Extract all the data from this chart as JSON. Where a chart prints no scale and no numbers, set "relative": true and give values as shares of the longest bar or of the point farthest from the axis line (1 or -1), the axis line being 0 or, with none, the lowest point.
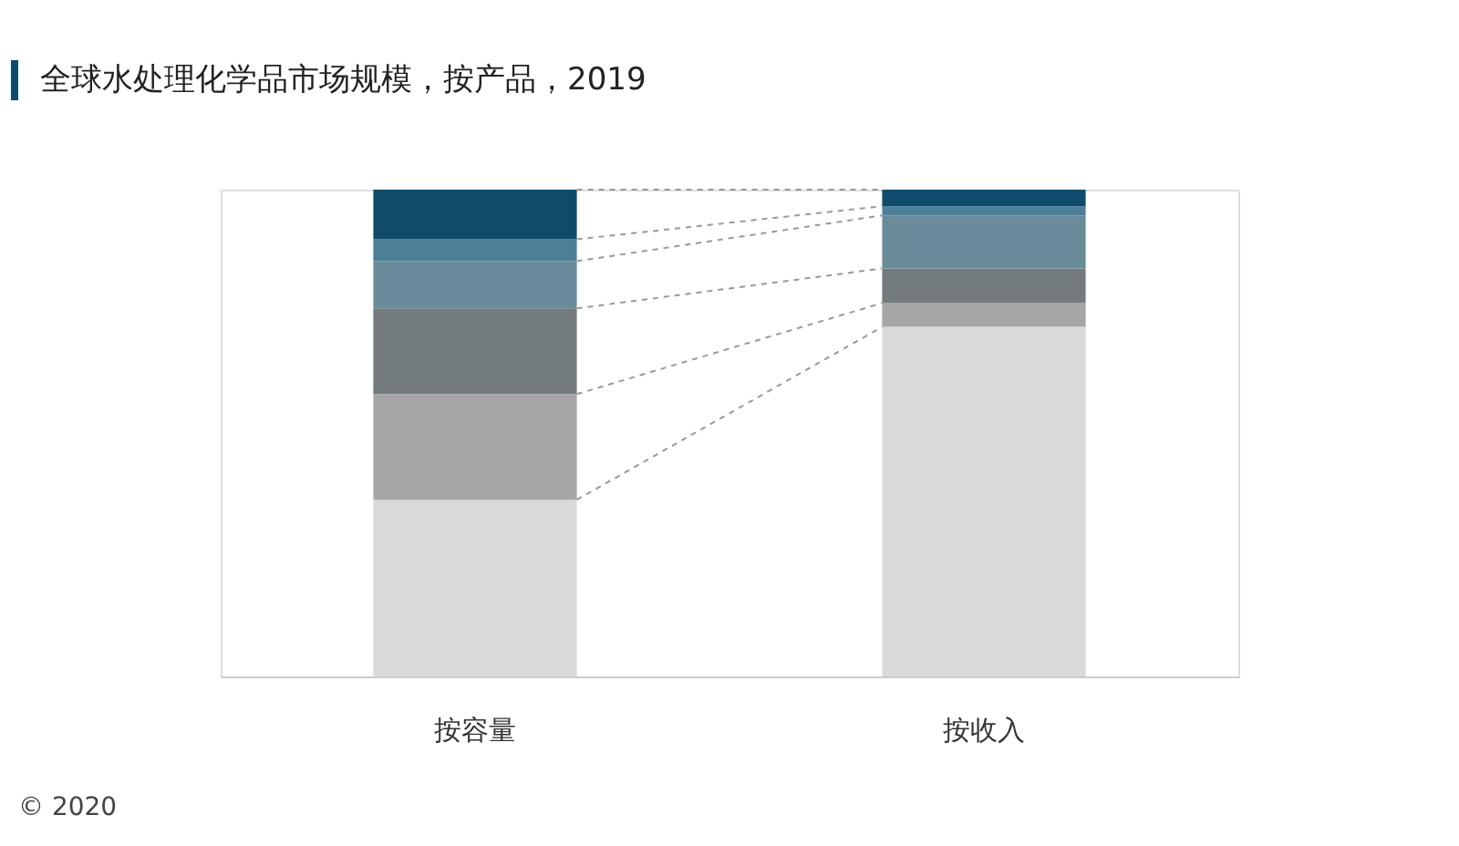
{
  "chart_data": {
    "type": "bar",
    "stacked": true,
    "relative": true,
    "title": "全球水处理化学品市场规模，按产品，2019",
    "categories": [
      "按容量",
      "按收入"
    ],
    "series": [
      {
        "color": "#d9d9d9",
        "values": [
          0.363,
          0.718
        ]
      },
      {
        "color": "#a6a6a6",
        "values": [
          0.217,
          0.049
        ]
      },
      {
        "color": "#737b7e",
        "values": [
          0.176,
          0.071
        ]
      },
      {
        "color": "#6a8c9a",
        "values": [
          0.097,
          0.109
        ]
      },
      {
        "color": "#4d7f97",
        "values": [
          0.045,
          0.019
        ]
      },
      {
        "color": "#0f4c6b",
        "values": [
          0.102,
          0.034
        ]
      }
    ],
    "annotations": [
      "© 2020"
    ],
    "grid": false,
    "legend": false
  }
}
